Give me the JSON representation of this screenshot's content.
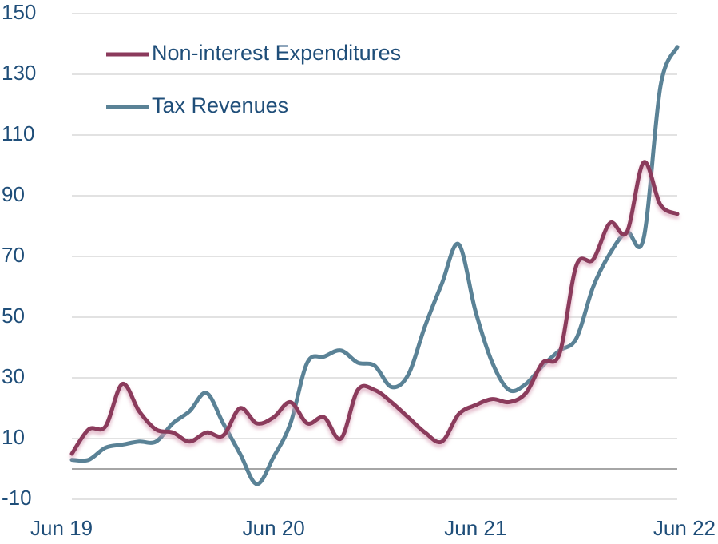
{
  "chart_data": {
    "type": "line",
    "categories": [
      "Jun 19",
      null,
      null,
      null,
      null,
      null,
      null,
      null,
      null,
      null,
      null,
      null,
      "Jun 20",
      null,
      null,
      null,
      null,
      null,
      null,
      null,
      null,
      null,
      null,
      null,
      "Jun 21",
      null,
      null,
      null,
      null,
      null,
      null,
      null,
      null,
      null,
      null,
      null,
      "Jun 22"
    ],
    "series": [
      {
        "name": "Non-interest Expenditures",
        "color": "#8b3a5c",
        "values": [
          5,
          13,
          14,
          28,
          19,
          13,
          12,
          9,
          12,
          11,
          20,
          15,
          17,
          22,
          15,
          17,
          10,
          26,
          26,
          22,
          17,
          12,
          9,
          18,
          21,
          23,
          22,
          25,
          35,
          38,
          67,
          69,
          81,
          78,
          101,
          87,
          84
        ]
      },
      {
        "name": "Tax Revenues",
        "color": "#5a8296",
        "values": [
          3,
          3,
          7,
          8,
          9,
          9,
          15,
          19,
          25,
          15,
          5,
          -5,
          4,
          15,
          35,
          37,
          39,
          35,
          34,
          27,
          31,
          47,
          61,
          74,
          52,
          35,
          26,
          28,
          34,
          39,
          43,
          60,
          71,
          78,
          76,
          126,
          139
        ]
      }
    ],
    "ylim": [
      -10,
      150
    ],
    "yticks": [
      -10,
      10,
      30,
      50,
      70,
      90,
      110,
      130,
      150
    ],
    "grid": true,
    "legend": "upper left"
  }
}
